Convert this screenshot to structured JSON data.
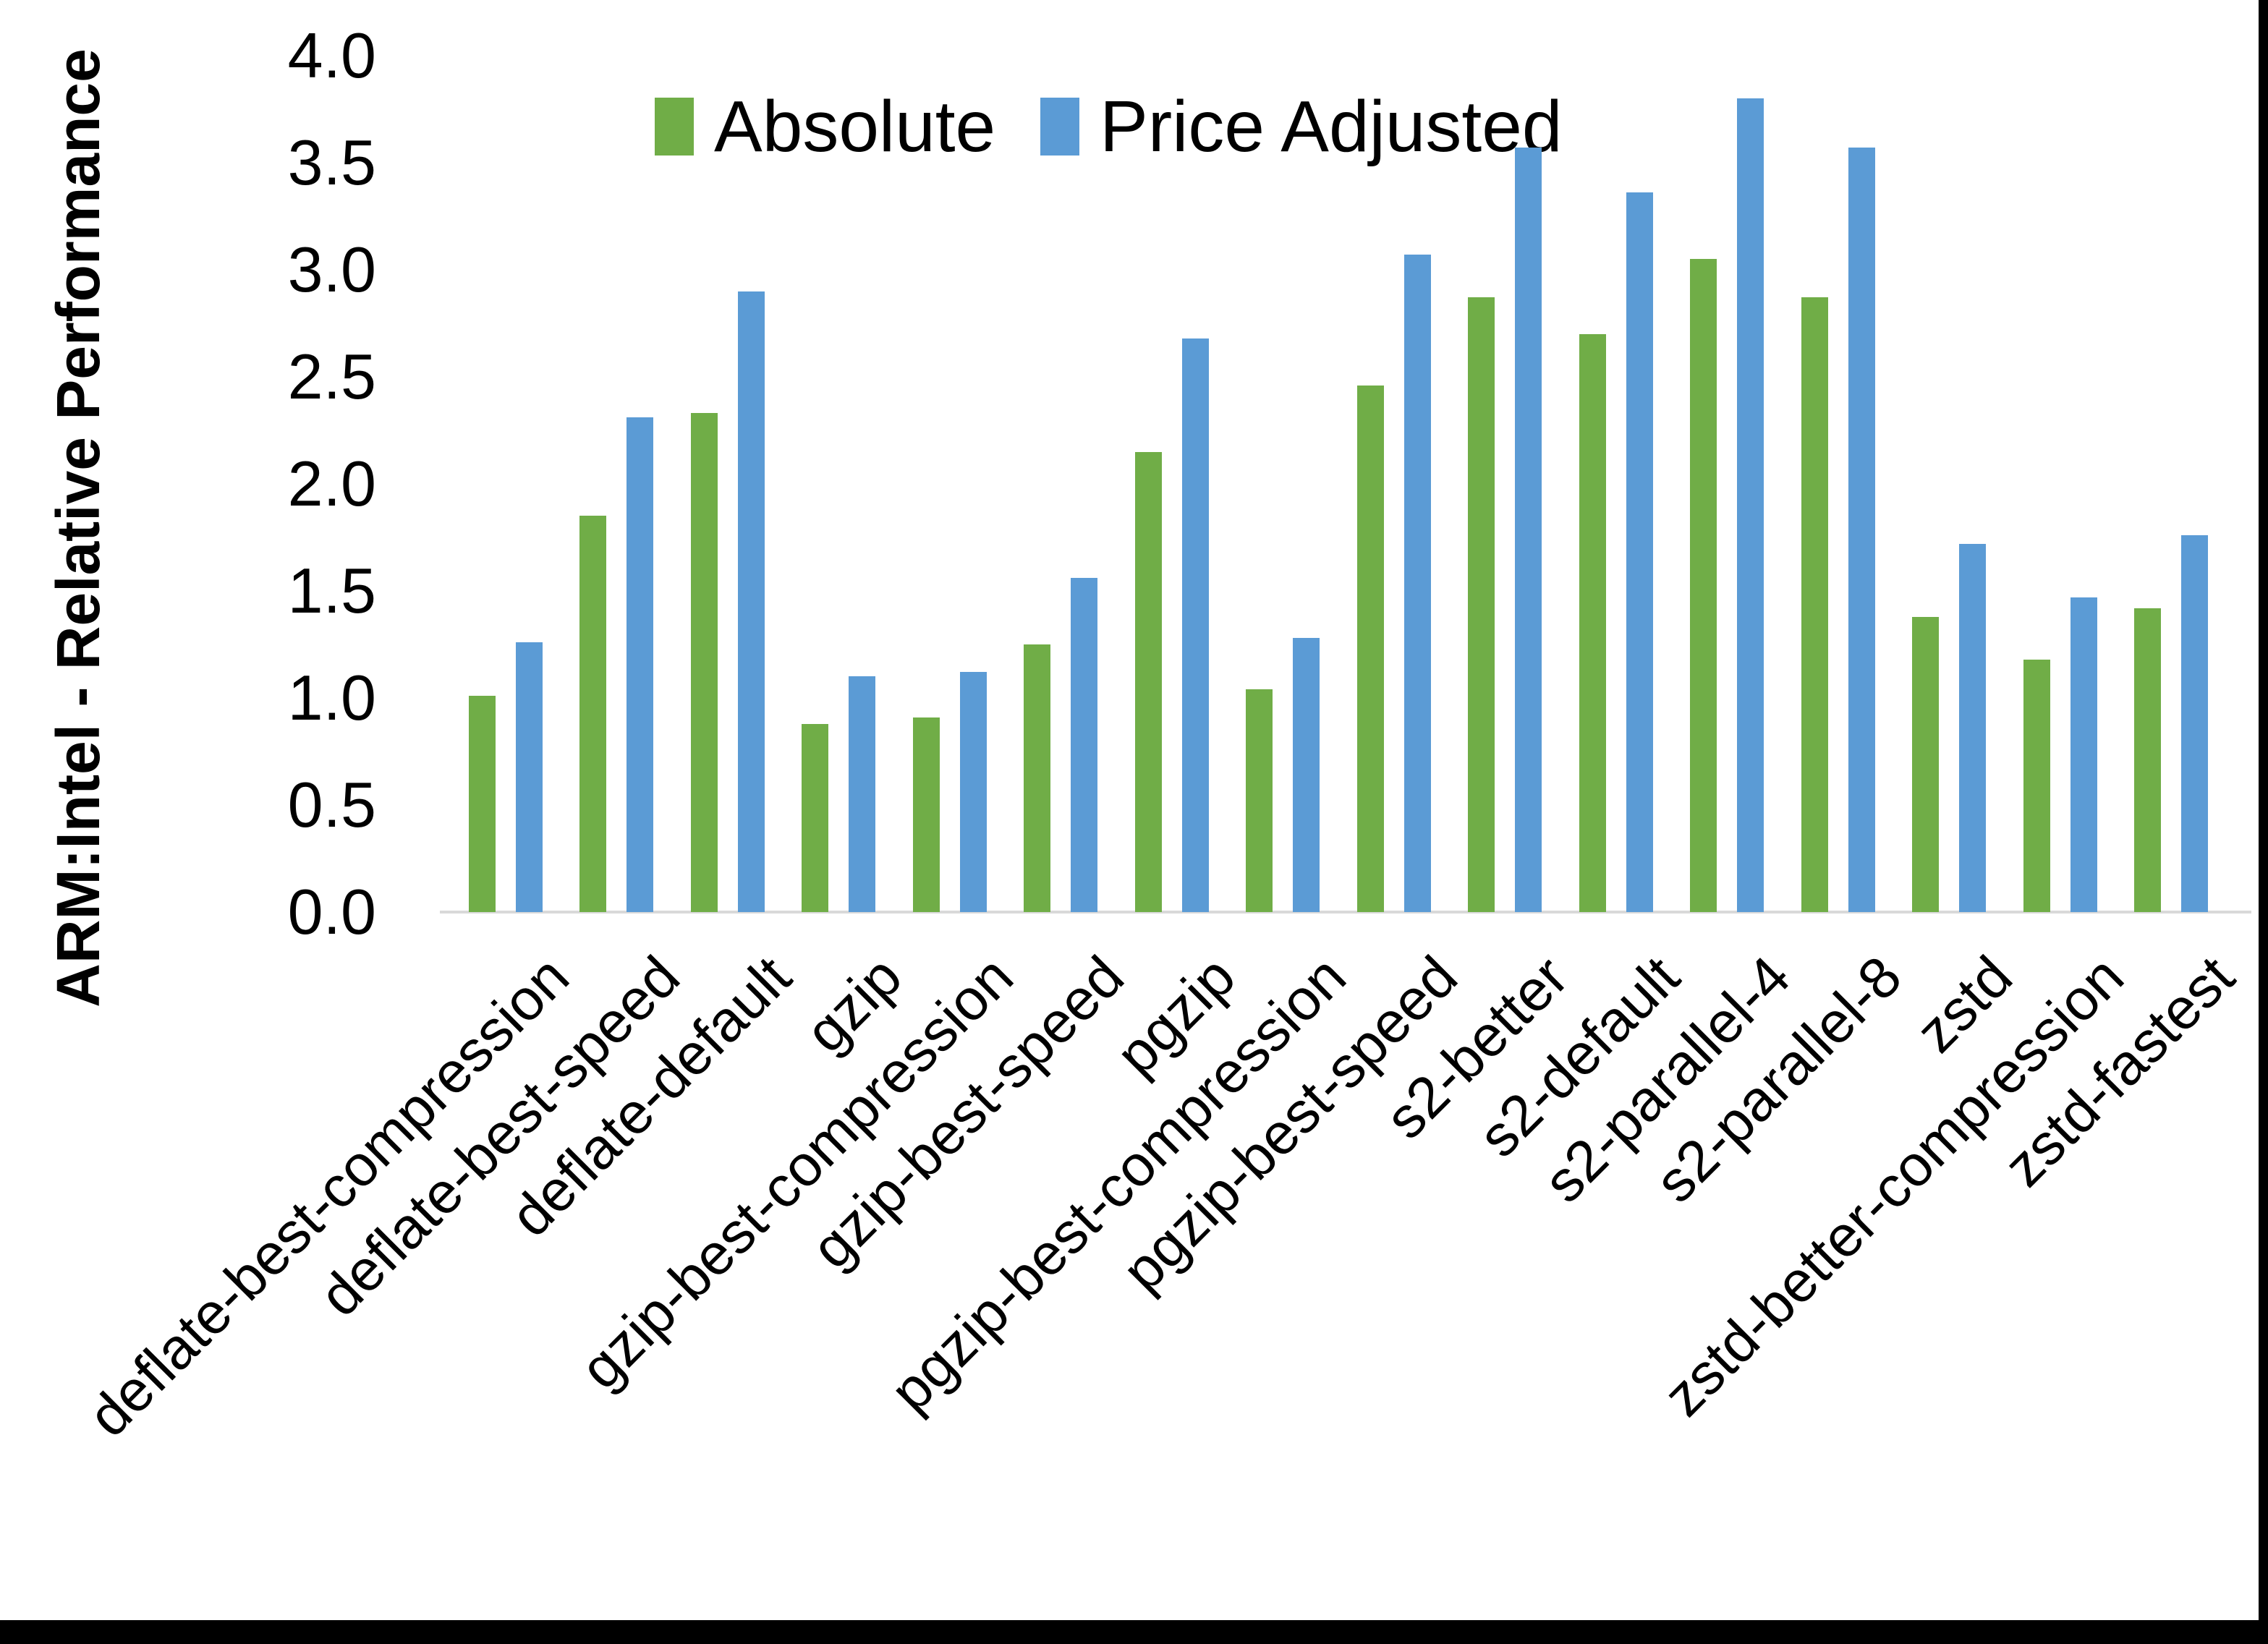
{
  "figure": {
    "background": "#ffffff",
    "frame_color": "#000000",
    "axis_line_color": "#d9d9d9",
    "text_color": "#000000"
  },
  "chart_data": {
    "type": "bar",
    "title": "",
    "xlabel": "",
    "ylabel": "ARM:Intel - Relative Performance",
    "ylim": [
      0.0,
      4.0
    ],
    "ytick_step": 0.5,
    "yticks": [
      "4.0",
      "3.5",
      "3.0",
      "2.5",
      "2.0",
      "1.5",
      "1.0",
      "0.5",
      "0.0"
    ],
    "grid": false,
    "legend_position": "top-center",
    "categories": [
      "deflate-best-compression",
      "deflate-best-speed",
      "deflate-default",
      "gzip",
      "gzip-best-compression",
      "gzip-best-speed",
      "pgzip",
      "pgzip-best-compression",
      "pgzip-best-speed",
      "s2-better",
      "s2-default",
      "s2-parallel-4",
      "s2-parallel-8",
      "zstd",
      "zstd-better-compression",
      "zstd-fastest"
    ],
    "series": [
      {
        "name": "Absolute",
        "color": "#70AD47",
        "values": [
          1.01,
          1.85,
          2.33,
          0.88,
          0.91,
          1.25,
          2.15,
          1.04,
          2.46,
          2.87,
          2.7,
          3.05,
          2.87,
          1.38,
          1.18,
          1.42
        ]
      },
      {
        "name": "Price Adjusted",
        "color": "#5B9BD5",
        "values": [
          1.26,
          2.31,
          2.9,
          1.1,
          1.12,
          1.56,
          2.68,
          1.28,
          3.07,
          3.57,
          3.36,
          3.8,
          3.57,
          1.72,
          1.47,
          1.76
        ]
      }
    ]
  }
}
